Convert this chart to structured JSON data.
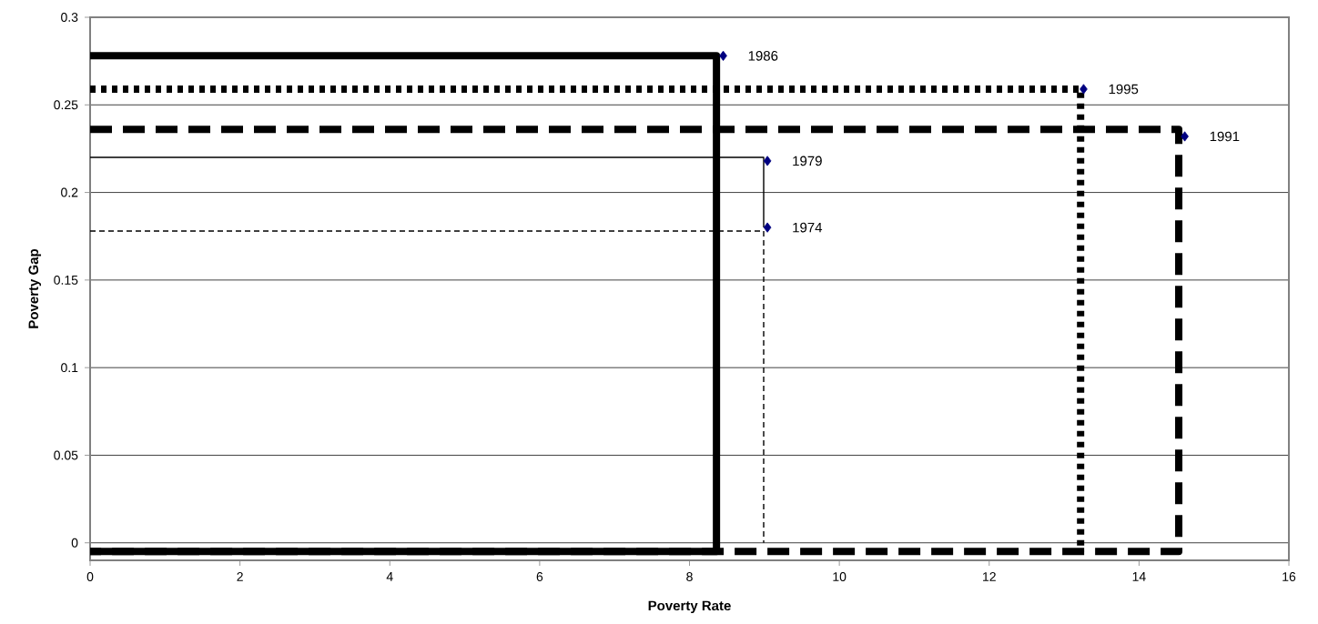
{
  "chart_data": {
    "type": "scatter",
    "xlabel": "Poverty Rate",
    "ylabel": "Poverty Gap",
    "xlim": [
      0,
      16
    ],
    "xticks": [
      0,
      2,
      4,
      6,
      8,
      10,
      12,
      14,
      16
    ],
    "ylim": [
      -0.01,
      0.3
    ],
    "yticks": [
      0,
      0.05,
      0.1,
      0.15,
      0.2,
      0.25,
      0.3
    ],
    "grid": "y",
    "marker": "diamond",
    "series": [
      {
        "type": "line",
        "color": "#000000",
        "line_style": "dashed",
        "marker": "none",
        "x": [
          0,
          14.53,
          14.53,
          0
        ],
        "values": [
          0.236,
          0.236,
          -0.005,
          -0.005
        ]
      },
      {
        "type": "line",
        "color": "#000000",
        "line_style": "dotted",
        "marker": "none",
        "x": [
          0,
          13.22,
          13.22
        ],
        "values": [
          0.259,
          0.259,
          -0.005
        ]
      },
      {
        "type": "line",
        "color": "#000000",
        "line_style": "solid",
        "marker": "none",
        "x": [
          0,
          8.99,
          8.99
        ],
        "values": [
          0.22,
          0.22,
          0.18
        ]
      },
      {
        "type": "line",
        "color": "#000000",
        "line_style": "dashed",
        "marker": "none",
        "x": [
          0,
          8.99,
          8.99
        ],
        "values": [
          0.178,
          0.178,
          0
        ]
      },
      {
        "type": "line",
        "color": "#000000",
        "line_style": "solid",
        "marker": "none",
        "x": [
          0,
          8.36,
          8.36,
          0
        ],
        "values": [
          0.278,
          0.278,
          -0.005,
          -0.005
        ]
      },
      {
        "color": "#000080",
        "x": [
          9.04,
          9.04,
          8.45,
          14.61,
          13.26
        ],
        "values": [
          0.18,
          0.218,
          0.278,
          0.232,
          0.259
        ]
      }
    ],
    "annotations": [
      {
        "text": "1974",
        "x": 9.04,
        "y": 0.18
      },
      {
        "text": "1979",
        "x": 9.04,
        "y": 0.218
      },
      {
        "text": "1986",
        "x": 8.45,
        "y": 0.278
      },
      {
        "text": "1991",
        "x": 14.61,
        "y": 0.232
      },
      {
        "text": "1995",
        "x": 13.26,
        "y": 0.259
      }
    ]
  }
}
